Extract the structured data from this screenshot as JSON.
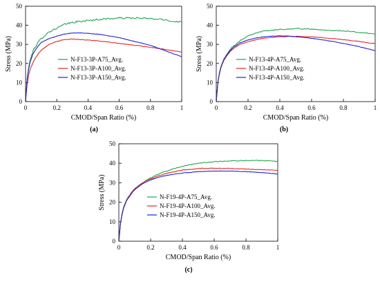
{
  "figure": {
    "background": "#ffffff"
  },
  "chart_data": [
    {
      "type": "line",
      "panel_label": "(a)",
      "xlabel": "CMOD/Span Ratio (%)",
      "ylabel": "Stress (MPa)",
      "xlim": [
        0,
        1
      ],
      "ylim": [
        0,
        50
      ],
      "x_ticks": [
        0,
        0.2,
        0.4,
        0.6,
        0.8,
        1
      ],
      "x_tick_labels": [
        "0",
        "0.2",
        "0.4",
        "0.6",
        "0.8",
        "1"
      ],
      "y_ticks": [
        0,
        10,
        20,
        30,
        40,
        50
      ],
      "y_tick_labels": [
        "0",
        "10",
        "20",
        "30",
        "40",
        "50"
      ],
      "grid": false,
      "legend_position": "center-left",
      "series": [
        {
          "name": "N-F13-3P-A75_Avg.",
          "color": "#1fa84d",
          "noise": 0.45,
          "points": [
            [
              0,
              0
            ],
            [
              0.01,
              12
            ],
            [
              0.02,
              18
            ],
            [
              0.03,
              22
            ],
            [
              0.05,
              27
            ],
            [
              0.08,
              31
            ],
            [
              0.1,
              33
            ],
            [
              0.15,
              36.5
            ],
            [
              0.2,
              38.5
            ],
            [
              0.25,
              40.5
            ],
            [
              0.3,
              41.5
            ],
            [
              0.35,
              42
            ],
            [
              0.4,
              42.5
            ],
            [
              0.5,
              43.3
            ],
            [
              0.6,
              43.8
            ],
            [
              0.7,
              43.8
            ],
            [
              0.8,
              43.5
            ],
            [
              0.9,
              42.8
            ],
            [
              0.95,
              42
            ],
            [
              1,
              41.8
            ]
          ]
        },
        {
          "name": "N-F13-3P-A100_Avg.",
          "color": "#e8261c",
          "noise": 0.15,
          "points": [
            [
              0,
              0
            ],
            [
              0.01,
              9
            ],
            [
              0.02,
              14
            ],
            [
              0.03,
              17
            ],
            [
              0.05,
              21
            ],
            [
              0.08,
              25
            ],
            [
              0.1,
              27
            ],
            [
              0.15,
              30
            ],
            [
              0.2,
              31.5
            ],
            [
              0.25,
              32.5
            ],
            [
              0.3,
              32.8
            ],
            [
              0.4,
              32.3
            ],
            [
              0.5,
              31.5
            ],
            [
              0.6,
              30.5
            ],
            [
              0.7,
              29.5
            ],
            [
              0.8,
              28.5
            ],
            [
              0.9,
              27.3
            ],
            [
              1,
              26
            ]
          ]
        },
        {
          "name": "N-F13-3P-A150_Avg.",
          "color": "#1c1fe0",
          "noise": 0.1,
          "points": [
            [
              0,
              0
            ],
            [
              0.01,
              12
            ],
            [
              0.02,
              17
            ],
            [
              0.03,
              21
            ],
            [
              0.05,
              25.5
            ],
            [
              0.08,
              29
            ],
            [
              0.1,
              31
            ],
            [
              0.15,
              33
            ],
            [
              0.2,
              34.3
            ],
            [
              0.25,
              35.5
            ],
            [
              0.3,
              35.9
            ],
            [
              0.35,
              36
            ],
            [
              0.4,
              35.8
            ],
            [
              0.5,
              35
            ],
            [
              0.6,
              33.5
            ],
            [
              0.7,
              31.5
            ],
            [
              0.8,
              29.5
            ],
            [
              0.9,
              26.5
            ],
            [
              1,
              23.5
            ]
          ]
        }
      ]
    },
    {
      "type": "line",
      "panel_label": "(b)",
      "xlabel": "CMOD/Span Ratio (%)",
      "ylabel": "Stress (MPa)",
      "xlim": [
        0,
        1
      ],
      "ylim": [
        0,
        50
      ],
      "x_ticks": [
        0,
        0.2,
        0.4,
        0.6,
        0.8,
        1
      ],
      "x_tick_labels": [
        "0",
        "0.2",
        "0.4",
        "0.6",
        "0.8",
        "1"
      ],
      "y_ticks": [
        0,
        10,
        20,
        30,
        40,
        50
      ],
      "y_tick_labels": [
        "0",
        "10",
        "20",
        "30",
        "40",
        "50"
      ],
      "grid": false,
      "legend_position": "center",
      "series": [
        {
          "name": "N-F13-4P-A75_Avg.",
          "color": "#1fa84d",
          "noise": 0.25,
          "points": [
            [
              0,
              0
            ],
            [
              0.01,
              10
            ],
            [
              0.02,
              15
            ],
            [
              0.03,
              18.5
            ],
            [
              0.05,
              22.5
            ],
            [
              0.08,
              26.5
            ],
            [
              0.1,
              28.5
            ],
            [
              0.15,
              32
            ],
            [
              0.2,
              34.5
            ],
            [
              0.25,
              36
            ],
            [
              0.3,
              37
            ],
            [
              0.4,
              37.8
            ],
            [
              0.5,
              38.3
            ],
            [
              0.6,
              38
            ],
            [
              0.7,
              37.5
            ],
            [
              0.8,
              37
            ],
            [
              0.9,
              36.3
            ],
            [
              1,
              35.5
            ]
          ]
        },
        {
          "name": "N-F13-4P-A100_Avg.",
          "color": "#e8261c",
          "noise": 0.15,
          "points": [
            [
              0,
              0
            ],
            [
              0.01,
              10
            ],
            [
              0.02,
              14.5
            ],
            [
              0.03,
              18
            ],
            [
              0.05,
              22
            ],
            [
              0.08,
              25.5
            ],
            [
              0.1,
              27.3
            ],
            [
              0.15,
              30
            ],
            [
              0.2,
              31.5
            ],
            [
              0.25,
              32.5
            ],
            [
              0.3,
              33.3
            ],
            [
              0.4,
              34
            ],
            [
              0.5,
              34.2
            ],
            [
              0.6,
              34
            ],
            [
              0.7,
              33.3
            ],
            [
              0.8,
              32.5
            ],
            [
              0.9,
              31.5
            ],
            [
              1,
              30.3
            ]
          ]
        },
        {
          "name": "N-F13-4P-A150_Avg.",
          "color": "#1c1fe0",
          "noise": 0.1,
          "points": [
            [
              0,
              0
            ],
            [
              0.01,
              10
            ],
            [
              0.02,
              15
            ],
            [
              0.03,
              18.5
            ],
            [
              0.05,
              22.5
            ],
            [
              0.08,
              26
            ],
            [
              0.1,
              28
            ],
            [
              0.15,
              30.8
            ],
            [
              0.2,
              32.3
            ],
            [
              0.25,
              33.3
            ],
            [
              0.3,
              34
            ],
            [
              0.4,
              34.5
            ],
            [
              0.45,
              34.4
            ],
            [
              0.5,
              34
            ],
            [
              0.6,
              33.2
            ],
            [
              0.7,
              32
            ],
            [
              0.8,
              30.5
            ],
            [
              0.9,
              28.8
            ],
            [
              1,
              26.7
            ]
          ]
        }
      ]
    },
    {
      "type": "line",
      "panel_label": "(c)",
      "xlabel": "CMOD/Span Ratio (%)",
      "ylabel": "Stress (MPa)",
      "xlim": [
        0,
        1
      ],
      "ylim": [
        0,
        50
      ],
      "x_ticks": [
        0,
        0.2,
        0.4,
        0.6,
        0.8,
        1
      ],
      "x_tick_labels": [
        "0",
        "0.2",
        "0.4",
        "0.6",
        "0.8",
        "1"
      ],
      "y_ticks": [
        0,
        10,
        20,
        30,
        40,
        50
      ],
      "y_tick_labels": [
        "0",
        "10",
        "20",
        "30",
        "40",
        "50"
      ],
      "grid": false,
      "legend_position": "center",
      "series": [
        {
          "name": "N-F19-4P-A75_Avg.",
          "color": "#1fa84d",
          "noise": 0.2,
          "points": [
            [
              0,
              0
            ],
            [
              0.01,
              9
            ],
            [
              0.02,
              14
            ],
            [
              0.03,
              17.5
            ],
            [
              0.05,
              21.5
            ],
            [
              0.08,
              25
            ],
            [
              0.1,
              27
            ],
            [
              0.15,
              30
            ],
            [
              0.2,
              32.5
            ],
            [
              0.25,
              34.5
            ],
            [
              0.3,
              36
            ],
            [
              0.4,
              38.5
            ],
            [
              0.5,
              40
            ],
            [
              0.6,
              40.8
            ],
            [
              0.7,
              41.2
            ],
            [
              0.8,
              41.4
            ],
            [
              0.9,
              41.3
            ],
            [
              1,
              41
            ]
          ]
        },
        {
          "name": "N-F19-4P-A100_Avg.",
          "color": "#e8261c",
          "noise": 0.15,
          "points": [
            [
              0,
              0
            ],
            [
              0.01,
              9
            ],
            [
              0.02,
              14
            ],
            [
              0.03,
              17.5
            ],
            [
              0.05,
              21.5
            ],
            [
              0.08,
              25
            ],
            [
              0.1,
              27
            ],
            [
              0.15,
              30
            ],
            [
              0.2,
              32
            ],
            [
              0.25,
              33.5
            ],
            [
              0.3,
              34.8
            ],
            [
              0.4,
              36.5
            ],
            [
              0.5,
              37.3
            ],
            [
              0.6,
              37.5
            ],
            [
              0.7,
              37.3
            ],
            [
              0.8,
              37
            ],
            [
              0.9,
              36.7
            ],
            [
              1,
              36.3
            ]
          ]
        },
        {
          "name": "N-F19-4P-A150_Avg.",
          "color": "#1c1fe0",
          "noise": 0.1,
          "points": [
            [
              0,
              0
            ],
            [
              0.01,
              9
            ],
            [
              0.02,
              13.5
            ],
            [
              0.03,
              17
            ],
            [
              0.05,
              21
            ],
            [
              0.08,
              24.5
            ],
            [
              0.1,
              26.5
            ],
            [
              0.15,
              29.5
            ],
            [
              0.2,
              31.5
            ],
            [
              0.25,
              32.8
            ],
            [
              0.3,
              33.8
            ],
            [
              0.4,
              35
            ],
            [
              0.5,
              35.7
            ],
            [
              0.6,
              36
            ],
            [
              0.7,
              36
            ],
            [
              0.8,
              35.7
            ],
            [
              0.9,
              35.2
            ],
            [
              1,
              34.5
            ]
          ]
        }
      ]
    }
  ]
}
